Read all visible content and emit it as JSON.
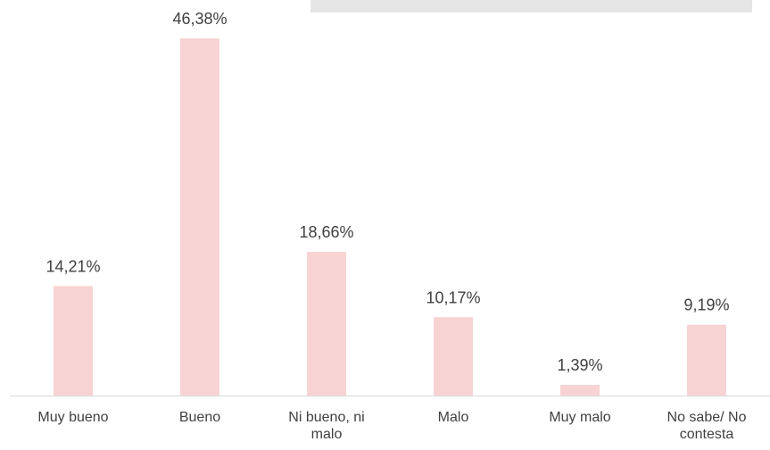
{
  "chart_data": {
    "type": "bar",
    "categories": [
      "Muy bueno",
      "Bueno",
      "Ni bueno, ni malo",
      "Malo",
      "Muy malo",
      "No sabe/ No contesta"
    ],
    "values": [
      14.21,
      46.38,
      18.66,
      10.17,
      1.39,
      9.19
    ],
    "value_labels": [
      "14,21%",
      "46,38%",
      "18,66%",
      "10,17%",
      "1,39%",
      "9,19%"
    ],
    "color": "#f8d3d3"
  }
}
